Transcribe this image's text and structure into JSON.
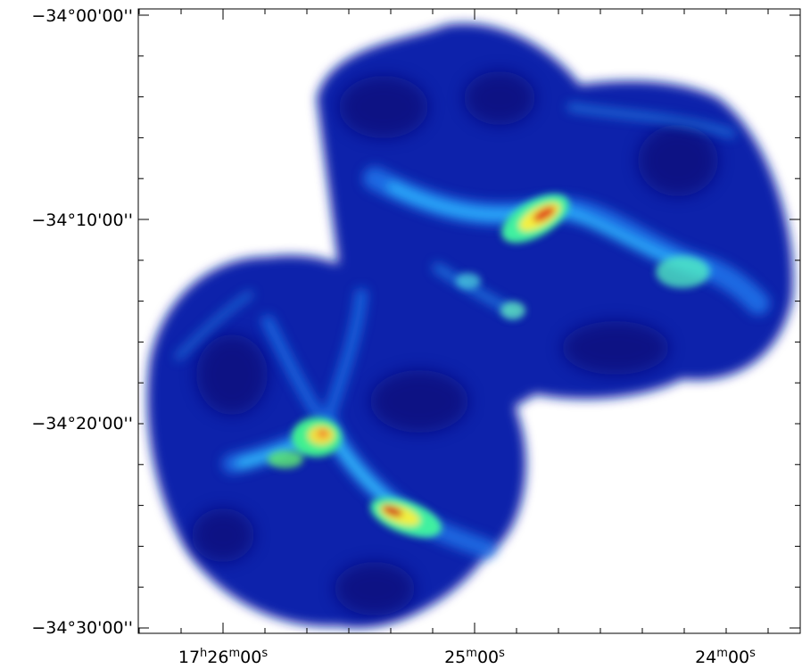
{
  "y_axis_labels": [
    "−34°00'00''",
    "−34°10'00''",
    "−34°20'00''",
    "−34°30'00''"
  ],
  "x_axis_labels": [
    "17h26m00s",
    "25m00s",
    "24m00s"
  ]
}
